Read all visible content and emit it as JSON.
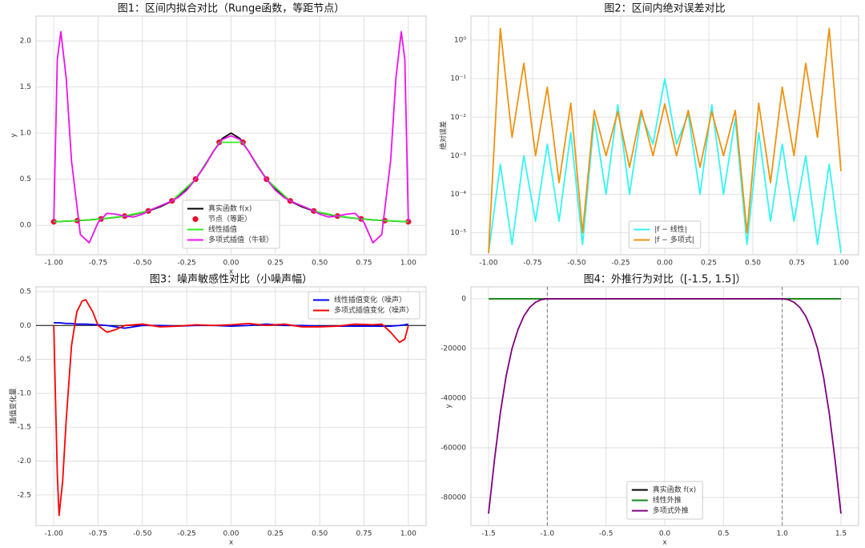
{
  "chart_data": [
    {
      "type": "line",
      "title": "图1：区间内拟合对比（Runge函数，等距节点）",
      "x_label": "x",
      "y_label": "y",
      "x": [
        -1.0,
        -0.98,
        -0.96,
        -0.93,
        -0.9,
        -0.85,
        -0.8,
        -0.75,
        -0.7,
        -0.65,
        -0.6,
        -0.55,
        -0.5,
        -0.45,
        -0.4,
        -0.35,
        -0.3,
        -0.25,
        -0.2,
        -0.15,
        -0.1,
        -0.05,
        0,
        0.05,
        0.1,
        0.15,
        0.2,
        0.25,
        0.3,
        0.35,
        0.4,
        0.45,
        0.5,
        0.55,
        0.6,
        0.65,
        0.7,
        0.75,
        0.8,
        0.85,
        0.9,
        0.93,
        0.96,
        0.98,
        1.0
      ],
      "series": [
        {
          "name": "真实函数 f(x)",
          "color": "#000000",
          "values": [
            0.0385,
            0.04,
            0.0416,
            0.0442,
            0.0471,
            0.0525,
            0.0588,
            0.0664,
            0.0755,
            0.0865,
            0.1,
            0.117,
            0.138,
            0.165,
            0.2,
            0.246,
            0.308,
            0.39,
            0.5,
            0.64,
            0.8,
            0.941,
            1,
            0.941,
            0.8,
            0.64,
            0.5,
            0.39,
            0.308,
            0.246,
            0.2,
            0.165,
            0.138,
            0.117,
            0.1,
            0.0865,
            0.0755,
            0.0664,
            0.0588,
            0.0525,
            0.0471,
            0.0442,
            0.0416,
            0.04,
            0.0385
          ]
        },
        {
          "name": "节点（等距）",
          "color": "#e8102a",
          "style": "scatter",
          "x": [
            -1,
            -0.8667,
            -0.7333,
            -0.6,
            -0.4667,
            -0.3333,
            -0.2,
            -0.0667,
            0.0667,
            0.2,
            0.3333,
            0.4667,
            0.6,
            0.7333,
            0.8667,
            1
          ],
          "values": [
            0.0385,
            0.0506,
            0.0692,
            0.1,
            0.1552,
            0.2647,
            0.5,
            0.9,
            0.9,
            0.5,
            0.2647,
            0.1552,
            0.1,
            0.0692,
            0.0506,
            0.0385
          ]
        },
        {
          "name": "线性插值",
          "color": "#33ee22",
          "x": [
            -1,
            -0.8667,
            -0.7333,
            -0.6,
            -0.4667,
            -0.3333,
            -0.2,
            -0.0667,
            0.0667,
            0.2,
            0.3333,
            0.4667,
            0.6,
            0.7333,
            0.8667,
            1
          ],
          "values": [
            0.0385,
            0.0506,
            0.0692,
            0.1,
            0.1552,
            0.2647,
            0.5,
            0.9,
            0.9,
            0.5,
            0.2647,
            0.1552,
            0.1,
            0.0692,
            0.0506,
            0.0385
          ]
        },
        {
          "name": "多项式插值（牛顿）",
          "color": "#ee11ee",
          "values": [
            0.04,
            1.8,
            2.1,
            1.6,
            0.7,
            -0.1,
            -0.19,
            0.03,
            0.13,
            0.12,
            0.1,
            0.09,
            0.12,
            0.17,
            0.21,
            0.25,
            0.3,
            0.38,
            0.5,
            0.64,
            0.8,
            0.93,
            0.97,
            0.93,
            0.8,
            0.64,
            0.5,
            0.38,
            0.3,
            0.25,
            0.21,
            0.17,
            0.12,
            0.09,
            0.1,
            0.12,
            0.13,
            0.03,
            -0.19,
            -0.1,
            0.7,
            1.6,
            2.1,
            1.8,
            0.04
          ]
        }
      ],
      "xlim": [
        -1.1,
        1.1
      ],
      "ylim": [
        -0.32,
        2.27
      ],
      "xticks": [
        {
          "value": -1,
          "label": "-1.00"
        },
        {
          "value": -0.75,
          "label": "-0.75"
        },
        {
          "value": -0.5,
          "label": "-0.50"
        },
        {
          "value": -0.25,
          "label": "-0.25"
        },
        {
          "value": 0,
          "label": "0.00"
        },
        {
          "value": 0.25,
          "label": "0.25"
        },
        {
          "value": 0.5,
          "label": "0.50"
        },
        {
          "value": 0.75,
          "label": "0.75"
        },
        {
          "value": 1,
          "label": "1.00"
        }
      ],
      "yticks": [
        {
          "value": 0,
          "label": "0.0"
        },
        0.5,
        {
          "value": 1,
          "label": "1.0"
        },
        1.5,
        {
          "value": 2,
          "label": "2.0"
        }
      ],
      "grid": true,
      "legend": "lower center"
    },
    {
      "type": "line",
      "title": "图2：区间内绝对误差对比",
      "y_label": "绝对误差",
      "yscale": "log",
      "x": [
        -1,
        -0.9333,
        -0.8667,
        -0.8,
        -0.7333,
        -0.6667,
        -0.6,
        -0.5333,
        -0.4667,
        -0.4,
        -0.3333,
        -0.2667,
        -0.2,
        -0.1333,
        -0.0667,
        0,
        0.0667,
        0.1333,
        0.2,
        0.2667,
        0.3333,
        0.4,
        0.4667,
        0.5333,
        0.6,
        0.6667,
        0.7333,
        0.8,
        0.8667,
        0.9333,
        1
      ],
      "series": [
        {
          "name": "|f − 线性|",
          "color": "#33f5f5",
          "values": [
            3e-06,
            0.0006,
            5e-06,
            0.001,
            2e-05,
            0.002,
            2e-05,
            0.004,
            5e-06,
            0.009,
            0.0001,
            0.021,
            0.0001,
            0.012,
            0.002,
            0.1,
            0.002,
            0.012,
            0.0001,
            0.021,
            0.0001,
            0.009,
            5e-06,
            0.004,
            2e-05,
            0.002,
            2e-05,
            0.001,
            5e-06,
            0.0006,
            3e-06
          ]
        },
        {
          "name": "|f − 多项式|",
          "color": "#f0920f",
          "values": [
            3e-06,
            2.0,
            0.003,
            0.25,
            0.001,
            0.06,
            0.0002,
            0.023,
            1e-05,
            0.015,
            0.001,
            0.014,
            0.0005,
            0.015,
            0.001,
            0.022,
            0.001,
            0.015,
            0.0005,
            0.014,
            0.001,
            0.015,
            1e-05,
            0.023,
            0.0002,
            0.06,
            0.001,
            0.25,
            0.003,
            2.0,
            0.0004
          ]
        }
      ],
      "xlim": [
        -1.1,
        1.1
      ],
      "ylim": [
        2.7e-06,
        4.2
      ],
      "xticks": [
        {
          "value": -1,
          "label": "-1.00"
        },
        {
          "value": -0.75,
          "label": "-0.75"
        },
        {
          "value": -0.5,
          "label": "-0.50"
        },
        {
          "value": -0.25,
          "label": "-0.25"
        },
        {
          "value": 0,
          "label": "0.00"
        },
        {
          "value": 0.25,
          "label": "0.25"
        },
        {
          "value": 0.5,
          "label": "0.50"
        },
        {
          "value": 0.75,
          "label": "0.75"
        },
        {
          "value": 1,
          "label": "1.00"
        }
      ],
      "yticks": [
        {
          "value": 1,
          "label": "10⁰"
        },
        {
          "value": 0.1,
          "label": "10⁻¹"
        },
        {
          "value": 0.01,
          "label": "10⁻²"
        },
        {
          "value": 0.001,
          "label": "10⁻³"
        },
        {
          "value": 0.0001,
          "label": "10⁻⁴"
        },
        {
          "value": 1e-05,
          "label": "10⁻⁵"
        }
      ],
      "grid": true,
      "legend": "lower center"
    },
    {
      "type": "line",
      "title": "图3：噪声敏感性对比（小噪声幅）",
      "x_label": "x",
      "y_label": "插值变化量",
      "x": [
        -1,
        -0.98,
        -0.97,
        -0.95,
        -0.93,
        -0.9,
        -0.87,
        -0.84,
        -0.82,
        -0.78,
        -0.75,
        -0.7,
        -0.65,
        -0.6,
        -0.5,
        -0.4,
        -0.3,
        -0.2,
        -0.1,
        0,
        0.1,
        0.2,
        0.3,
        0.4,
        0.5,
        0.6,
        0.7,
        0.8,
        0.85,
        0.9,
        0.95,
        0.98,
        1
      ],
      "series": [
        {
          "name": "线性插值变化（噪声）",
          "color": "#0000ff",
          "values": [
            0.04,
            0.04,
            0.04,
            0.035,
            0.03,
            0.03,
            0.02,
            0.02,
            0.02,
            0.015,
            0.01,
            0.0,
            -0.02,
            -0.04,
            0.0,
            0.0,
            -0.01,
            0.0,
            0.0,
            -0.01,
            0.0,
            0.02,
            0.0,
            0.0,
            -0.01,
            -0.01,
            -0.01,
            -0.01,
            -0.01,
            -0.01,
            0.0,
            0.01,
            0.02
          ]
        },
        {
          "name": "多项式插值变化（噪声）",
          "color": "#ff0000",
          "values": [
            0,
            -2.2,
            -2.8,
            -2.3,
            -1.4,
            -0.3,
            0.2,
            0.36,
            0.38,
            0.2,
            0.0,
            -0.1,
            -0.06,
            0.0,
            0.02,
            -0.02,
            -0.01,
            0.01,
            0.0,
            0.01,
            0.03,
            0.0,
            0.02,
            -0.02,
            -0.02,
            -0.01,
            0.02,
            0.01,
            0.02,
            -0.1,
            -0.25,
            -0.2,
            0
          ]
        }
      ],
      "hline": 0,
      "xlim": [
        -1.1,
        1.1
      ],
      "ylim": [
        -2.95,
        0.57
      ],
      "xticks": [
        {
          "value": -1,
          "label": "-1.00"
        },
        {
          "value": -0.75,
          "label": "-0.75"
        },
        {
          "value": -0.5,
          "label": "-0.50"
        },
        {
          "value": -0.25,
          "label": "-0.25"
        },
        {
          "value": 0,
          "label": "0.00"
        },
        {
          "value": 0.25,
          "label": "0.25"
        },
        {
          "value": 0.5,
          "label": "0.50"
        },
        {
          "value": 0.75,
          "label": "0.75"
        },
        {
          "value": 1,
          "label": "1.00"
        }
      ],
      "yticks": [
        0.5,
        {
          "value": 0,
          "label": "0.0"
        },
        -0.5,
        {
          "value": -1,
          "label": "-1.0"
        },
        -1.5,
        {
          "value": -2,
          "label": "-2.0"
        },
        -2.5
      ],
      "grid": true,
      "legend": "upper right"
    },
    {
      "type": "line",
      "title": "图4：外推行为对比（[-1.5, 1.5]）",
      "x_label": "x",
      "y_label": "y",
      "x": [
        -1.5,
        -1.45,
        -1.4,
        -1.35,
        -1.3,
        -1.25,
        -1.2,
        -1.15,
        -1.1,
        -1.05,
        -1,
        -0.5,
        0,
        0.5,
        1,
        1.05,
        1.1,
        1.15,
        1.2,
        1.25,
        1.3,
        1.35,
        1.4,
        1.45,
        1.5
      ],
      "series": [
        {
          "name": "真实函数 f(x)",
          "color": "#000000",
          "values": [
            0.0175,
            0.0187,
            0.02,
            0.0215,
            0.0231,
            0.025,
            0.027,
            0.0294,
            0.032,
            0.035,
            0.0385,
            0.138,
            1,
            0.138,
            0.0385,
            0.035,
            0.032,
            0.0294,
            0.027,
            0.025,
            0.0231,
            0.0215,
            0.02,
            0.0187,
            0.0175
          ]
        },
        {
          "name": "线性外推",
          "color": "#138a13",
          "values": [
            0.0385,
            0.0385,
            0.0385,
            0.0385,
            0.0385,
            0.0385,
            0.0385,
            0.0385,
            0.0385,
            0.0385,
            0.0385,
            0.138,
            0.9,
            0.138,
            0.0385,
            0.0385,
            0.0385,
            0.0385,
            0.0385,
            0.0385,
            0.0385,
            0.0385,
            0.0385,
            0.0385,
            0.0385
          ]
        },
        {
          "name": "多项式外推",
          "color": "#800080",
          "values": [
            -86500,
            -65000,
            -46000,
            -31000,
            -20000,
            -12500,
            -7000,
            -3500,
            -1400,
            -350,
            0.04,
            0.12,
            0.97,
            0.12,
            0.04,
            -350,
            -1400,
            -3500,
            -7000,
            -12500,
            -20000,
            -31000,
            -46000,
            -65000,
            -86500
          ]
        }
      ],
      "vlines": [
        -1,
        1
      ],
      "xlim": [
        -1.65,
        1.65
      ],
      "ylim": [
        -91300,
        4800
      ],
      "xticks": [
        -1.5,
        {
          "value": -1,
          "label": "-1.0"
        },
        -0.5,
        {
          "value": 0,
          "label": "0.0"
        },
        0.5,
        {
          "value": 1,
          "label": "1.0"
        },
        1.5
      ],
      "yticks": [
        0,
        -20000,
        -40000,
        -60000,
        -80000
      ],
      "grid": true,
      "legend": "lower center"
    }
  ]
}
